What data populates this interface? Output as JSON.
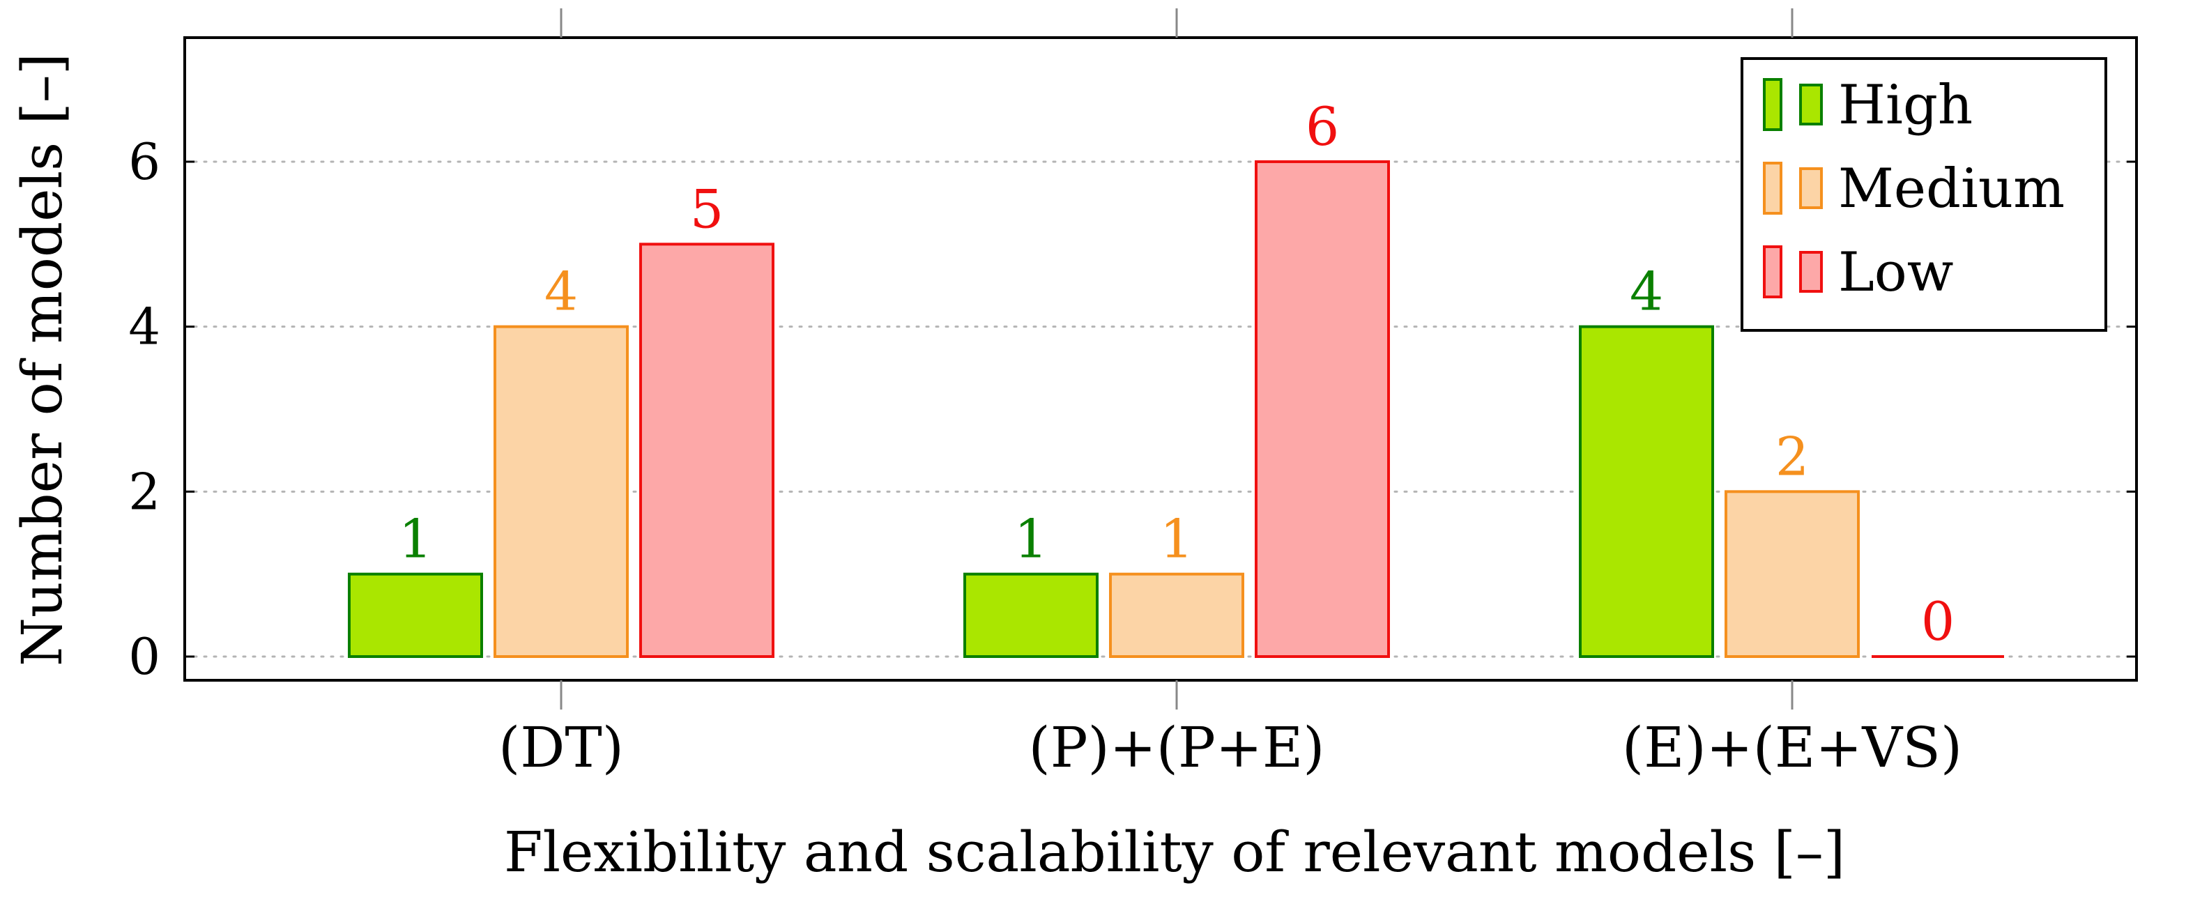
{
  "chart_data": {
    "type": "bar",
    "title": "",
    "categories": [
      "(DT)",
      "(P)+(P+E)",
      "(E)+(E+VS)"
    ],
    "series": [
      {
        "name": "High",
        "values": [
          1,
          1,
          4
        ],
        "fill": "#aae600",
        "stroke": "#0a8000",
        "label_color": "#0a8000"
      },
      {
        "name": "Medium",
        "values": [
          4,
          1,
          2
        ],
        "fill": "#fcd4a6",
        "stroke": "#f5901e",
        "label_color": "#f5901e"
      },
      {
        "name": "Low",
        "values": [
          5,
          6,
          0
        ],
        "fill": "#fda8a8",
        "stroke": "#f01010",
        "label_color": "#f01010"
      }
    ],
    "xlabel": "Flexibility and scalability of relevant models [–]",
    "ylabel": "Number of models [–]",
    "ylim": [
      -0.3,
      7.5
    ],
    "yticks": [
      0,
      2,
      4,
      6
    ],
    "grid": "y-dotted",
    "legend": "top-right"
  }
}
